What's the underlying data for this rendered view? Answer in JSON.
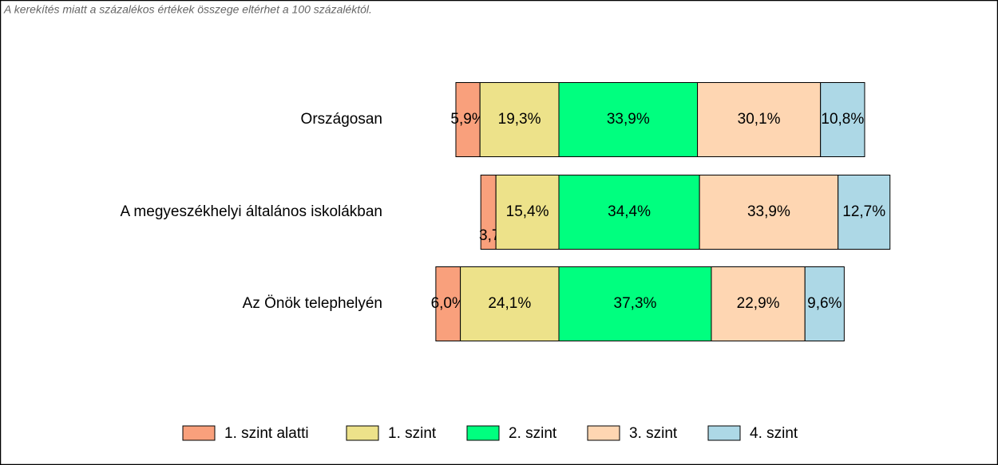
{
  "chart_data": {
    "type": "bar",
    "orientation": "horizontal",
    "stacked": true,
    "note": "A kerekítés miatt a  százalékos értékek összege eltérhet a 100 százaléktól.",
    "categories": [
      "Országosan",
      "A megyeszékhelyi általános iskolákban",
      "Az Önök telephelyén"
    ],
    "series": [
      {
        "name": "1. szint alatti",
        "color": "#f9a07c",
        "values": [
          5.9,
          3.7,
          6.0
        ],
        "value_labels": [
          "5,9%",
          "3,7%",
          "6,0%"
        ]
      },
      {
        "name": "1. szint",
        "color": "#ede28a",
        "values": [
          19.3,
          15.4,
          24.1
        ],
        "value_labels": [
          "19,3%",
          "15,4%",
          "24,1%"
        ]
      },
      {
        "name": "2. szint",
        "color": "#00ff7f",
        "values": [
          33.9,
          34.4,
          37.3
        ],
        "value_labels": [
          "33,9%",
          "34,4%",
          "37,3%"
        ]
      },
      {
        "name": "3. szint",
        "color": "#fed6b2",
        "values": [
          30.1,
          33.9,
          22.9
        ],
        "value_labels": [
          "30,1%",
          "33,9%",
          "22,9%"
        ]
      },
      {
        "name": "4. szint",
        "color": "#add8e6",
        "values": [
          10.8,
          12.7,
          9.6
        ],
        "value_labels": [
          "10,8%",
          "12,7%",
          "9,6%"
        ]
      }
    ],
    "legend": "bottom"
  }
}
